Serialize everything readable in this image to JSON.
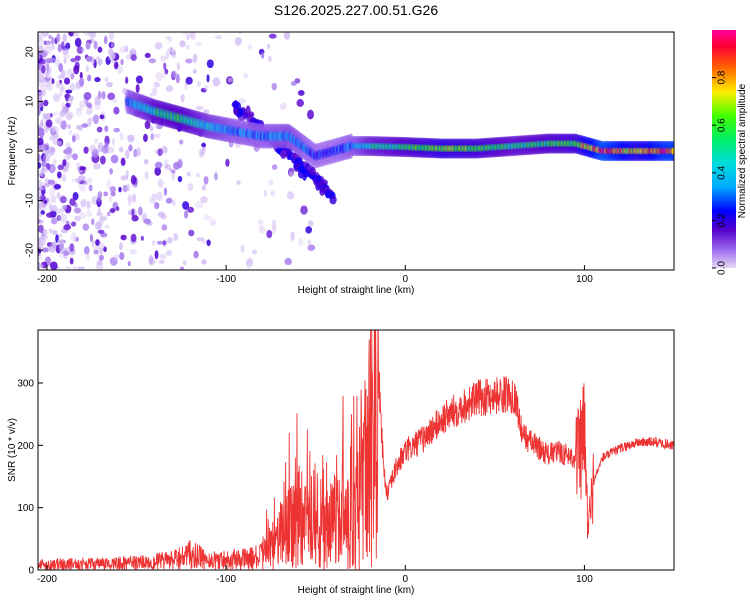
{
  "chart_data": [
    {
      "type": "heatmap",
      "title": "S126.2025.227.00.51.G26",
      "xlabel": "Height of straight line (km)",
      "ylabel": "Frequency (Hz)",
      "xlim": [
        -205,
        150
      ],
      "ylim": [
        -24,
        24
      ],
      "xticks": [
        -200,
        -100,
        0,
        100
      ],
      "yticks": [
        -20,
        -10,
        0,
        10,
        20
      ],
      "colorbar": {
        "label": "Normalized spectral amplitude",
        "range": [
          0,
          1
        ],
        "ticks": [
          0.0,
          0.2,
          0.4,
          0.6,
          0.8
        ]
      },
      "ridge": [
        {
          "x": -155,
          "freq": 10.0,
          "amp": 0.3
        },
        {
          "x": -140,
          "freq": 8.0,
          "amp": 0.5
        },
        {
          "x": -125,
          "freq": 6.5,
          "amp": 0.55
        },
        {
          "x": -110,
          "freq": 5.0,
          "amp": 0.4
        },
        {
          "x": -95,
          "freq": 4.0,
          "amp": 0.3
        },
        {
          "x": -80,
          "freq": 3.0,
          "amp": 0.3
        },
        {
          "x": -65,
          "freq": 3.0,
          "amp": 0.35
        },
        {
          "x": -50,
          "freq": -1.0,
          "amp": 0.25
        },
        {
          "x": -40,
          "freq": 0.0,
          "amp": 0.25
        },
        {
          "x": -30,
          "freq": 1.0,
          "amp": 0.3
        },
        {
          "x": -20,
          "freq": 1.0,
          "amp": 0.45
        },
        {
          "x": 0,
          "freq": 0.8,
          "amp": 0.55
        },
        {
          "x": 20,
          "freq": 0.5,
          "amp": 0.65
        },
        {
          "x": 40,
          "freq": 0.5,
          "amp": 0.6
        },
        {
          "x": 60,
          "freq": 1.0,
          "amp": 0.5
        },
        {
          "x": 80,
          "freq": 1.5,
          "amp": 0.55
        },
        {
          "x": 95,
          "freq": 1.5,
          "amp": 0.6
        },
        {
          "x": 110,
          "freq": 0.0,
          "amp": 0.95
        },
        {
          "x": 130,
          "freq": 0.0,
          "amp": 0.7
        },
        {
          "x": 145,
          "freq": 0.0,
          "amp": 0.9
        }
      ]
    },
    {
      "type": "line",
      "xlabel": "Height of straight line (km)",
      "ylabel": "SNR (10 * v/v)",
      "xlim": [
        -205,
        150
      ],
      "ylim": [
        0,
        385
      ],
      "xticks": [
        -200,
        -100,
        0,
        100
      ],
      "yticks": [
        0,
        100,
        200,
        300
      ],
      "color": "#ee3333",
      "x": [
        -205,
        -190,
        -175,
        -160,
        -145,
        -130,
        -120,
        -110,
        -100,
        -90,
        -80,
        -75,
        -70,
        -65,
        -60,
        -55,
        -50,
        -45,
        -40,
        -35,
        -30,
        -25,
        -20,
        -17,
        -15,
        -12,
        -10,
        -5,
        0,
        5,
        10,
        20,
        30,
        40,
        50,
        60,
        62,
        65,
        70,
        75,
        80,
        85,
        90,
        95,
        98,
        100,
        102,
        105,
        110,
        120,
        130,
        140,
        150
      ],
      "y": [
        12,
        14,
        14,
        15,
        18,
        22,
        35,
        22,
        24,
        25,
        30,
        45,
        60,
        95,
        110,
        90,
        70,
        80,
        95,
        110,
        120,
        150,
        250,
        360,
        320,
        160,
        120,
        165,
        190,
        200,
        210,
        240,
        260,
        275,
        280,
        282,
        270,
        220,
        205,
        195,
        185,
        190,
        185,
        180,
        190,
        220,
        60,
        140,
        180,
        195,
        205,
        205,
        200
      ]
    }
  ]
}
